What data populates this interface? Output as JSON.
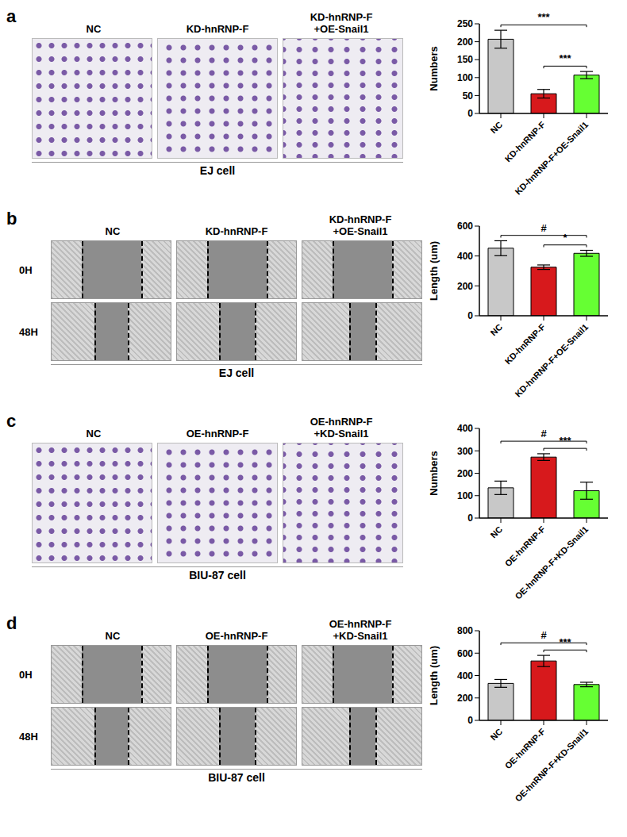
{
  "chart_data": [
    {
      "type": "bar",
      "categories": [
        "NC",
        "KD-hnRNP-F",
        "KD-hnRNP-F+OE-Snail1"
      ],
      "values": [
        207,
        55,
        107
      ],
      "errors": [
        25,
        12,
        10
      ],
      "colors": [
        "#c8c8c8",
        "#d7191c",
        "#66ff33"
      ],
      "y_label": "Numbers",
      "ylim": [
        0,
        250
      ],
      "yticks": [
        0,
        50,
        100,
        150,
        200,
        250
      ],
      "annotations": [
        {
          "from": "NC",
          "to": "KD-hnRNP-F+OE-Snail1",
          "label": "***"
        },
        {
          "from": "KD-hnRNP-F",
          "to": "KD-hnRNP-F+OE-Snail1",
          "label": "***"
        }
      ]
    },
    {
      "type": "bar",
      "categories": [
        "NC",
        "KD-hnRNP-F",
        "KD-hnRNP-F+OE-Snail1"
      ],
      "values": [
        452,
        325,
        418
      ],
      "errors": [
        50,
        15,
        20
      ],
      "colors": [
        "#c8c8c8",
        "#d7191c",
        "#66ff33"
      ],
      "y_label": "Length (um)",
      "ylim": [
        0,
        600
      ],
      "yticks": [
        0,
        200,
        400,
        600
      ],
      "annotations": [
        {
          "from": "NC",
          "to": "KD-hnRNP-F+OE-Snail1",
          "label": "#"
        },
        {
          "from": "KD-hnRNP-F",
          "to": "KD-hnRNP-F+OE-Snail1",
          "label": "*"
        }
      ]
    },
    {
      "type": "bar",
      "categories": [
        "NC",
        "OE-hnRNP-F",
        "OE-hnRNP-F+KD-Snail1"
      ],
      "values": [
        135,
        272,
        122
      ],
      "errors": [
        30,
        15,
        38
      ],
      "colors": [
        "#c8c8c8",
        "#d7191c",
        "#66ff33"
      ],
      "y_label": "Numbers",
      "ylim": [
        0,
        400
      ],
      "yticks": [
        0,
        100,
        200,
        300,
        400
      ],
      "annotations": [
        {
          "from": "NC",
          "to": "OE-hnRNP-F+KD-Snail1",
          "label": "#"
        },
        {
          "from": "OE-hnRNP-F",
          "to": "OE-hnRNP-F+KD-Snail1",
          "label": "***"
        }
      ]
    },
    {
      "type": "bar",
      "categories": [
        "NC",
        "OE-hnRNP-F",
        "OE-hnRNP-F+KD-Snail1"
      ],
      "values": [
        330,
        530,
        320
      ],
      "errors": [
        35,
        50,
        20
      ],
      "colors": [
        "#c8c8c8",
        "#d7191c",
        "#66ff33"
      ],
      "y_label": "Length (um)",
      "ylim": [
        0,
        800
      ],
      "yticks": [
        0,
        200,
        400,
        600,
        800
      ],
      "annotations": [
        {
          "from": "NC",
          "to": "OE-hnRNP-F+KD-Snail1",
          "label": "#"
        },
        {
          "from": "OE-hnRNP-F",
          "to": "OE-hnRNP-F+KD-Snail1",
          "label": "***"
        }
      ]
    }
  ],
  "images": [
    {
      "panel": "a",
      "columns": [
        [
          "NC"
        ],
        [
          "KD-hnRNP-F"
        ],
        [
          "KD-hnRNP-F",
          "+OE-Snail1"
        ]
      ],
      "rows": [],
      "caption": "EJ cell"
    },
    {
      "panel": "b",
      "columns": [
        [
          "NC"
        ],
        [
          "KD-hnRNP-F"
        ],
        [
          "KD-hnRNP-F",
          "+OE-Snail1"
        ]
      ],
      "rows": [
        "0H",
        "48H"
      ],
      "caption": "EJ cell"
    },
    {
      "panel": "c",
      "columns": [
        [
          "NC"
        ],
        [
          "OE-hnRNP-F"
        ],
        [
          "OE-hnRNP-F",
          "+KD-Snail1"
        ]
      ],
      "rows": [],
      "caption": "BIU-87 cell"
    },
    {
      "panel": "d",
      "columns": [
        [
          "NC"
        ],
        [
          "OE-hnRNP-F"
        ],
        [
          "OE-hnRNP-F",
          "+KD-Snail1"
        ]
      ],
      "rows": [
        "0H",
        "48H"
      ],
      "caption": "BIU-87 cell"
    }
  ]
}
